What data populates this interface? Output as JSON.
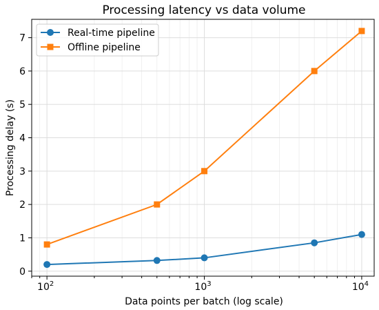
{
  "chart_data": {
    "type": "line",
    "title": "Processing latency vs data volume",
    "xlabel": "Data points per batch (log scale)",
    "ylabel": "Processing delay (s)",
    "x_scale": "log",
    "xlim": [
      80,
      12000
    ],
    "ylim": [
      -0.15,
      7.55
    ],
    "x_ticks": [
      {
        "value": 100,
        "base": "10",
        "exp": "2"
      },
      {
        "value": 1000,
        "base": "10",
        "exp": "3"
      },
      {
        "value": 10000,
        "base": "10",
        "exp": "4"
      }
    ],
    "y_ticks": [
      0,
      1,
      2,
      3,
      4,
      5,
      6,
      7
    ],
    "y_tick_labels": [
      "0",
      "1",
      "2",
      "3",
      "4",
      "5",
      "6",
      "7"
    ],
    "grid": true,
    "legend_position": "top-left",
    "x": [
      100,
      500,
      1000,
      5000,
      10000
    ],
    "series": [
      {
        "name": "Real-time pipeline",
        "values": [
          0.2,
          0.32,
          0.4,
          0.85,
          1.1
        ],
        "color": "#1f77b4",
        "marker": "circle"
      },
      {
        "name": "Offline pipeline",
        "values": [
          0.8,
          2.0,
          3.0,
          6.0,
          7.2
        ],
        "color": "#ff7f0e",
        "marker": "square"
      }
    ]
  }
}
